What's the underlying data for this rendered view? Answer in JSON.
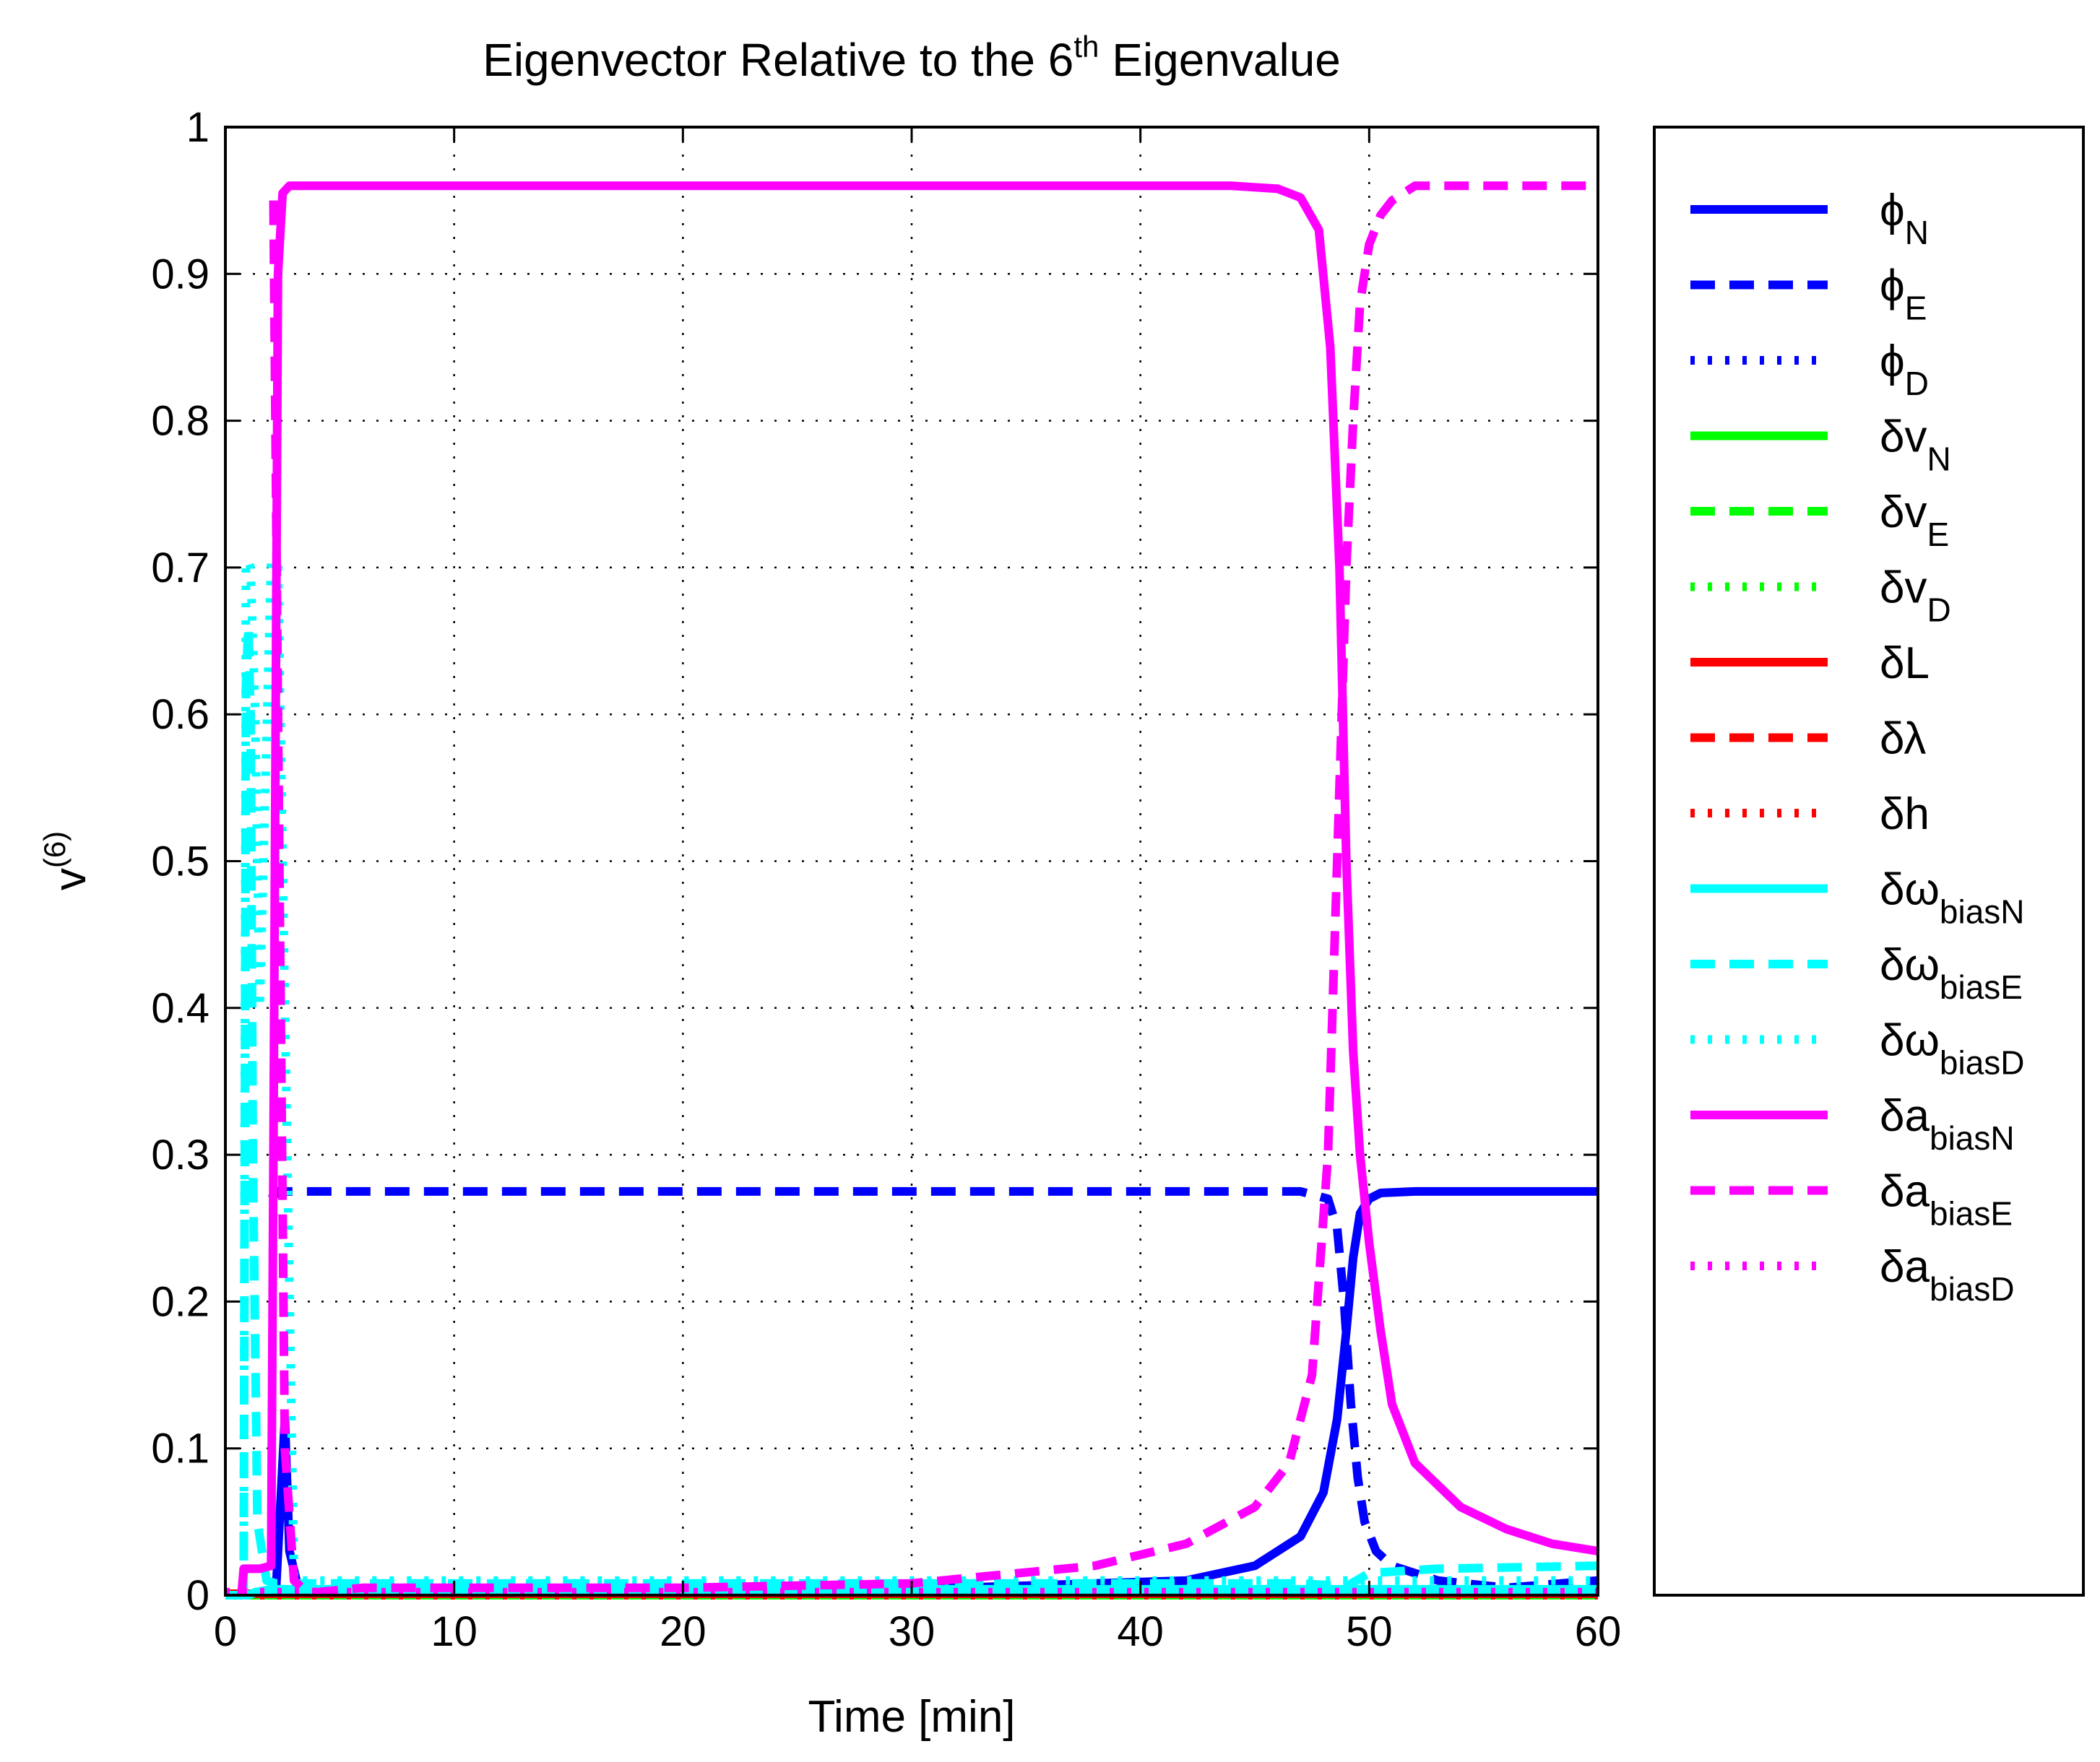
{
  "chart_data": {
    "type": "line",
    "title": {
      "prefix": "Eigenvector Relative to the 6",
      "superscript": "th",
      "suffix": " Eigenvalue"
    },
    "xlabel": "Time [min]",
    "ylabel": {
      "base": "v",
      "superscript": "(6)"
    },
    "xlim": [
      0,
      60
    ],
    "ylim": [
      0,
      1
    ],
    "xticks": [
      0,
      10,
      20,
      30,
      40,
      50,
      60
    ],
    "xtick_labels": [
      "0",
      "10",
      "20",
      "30",
      "40",
      "50",
      "60"
    ],
    "yticks": [
      0,
      0.1,
      0.2,
      0.3,
      0.4,
      0.5,
      0.6,
      0.7,
      0.8,
      0.9,
      1
    ],
    "ytick_labels": [
      "0",
      "0.1",
      "0.2",
      "0.3",
      "0.4",
      "0.5",
      "0.6",
      "0.7",
      "0.8",
      "0.9",
      "1"
    ],
    "grid": true,
    "legend_position": "outside-right",
    "series": [
      {
        "id": "phi_N",
        "label": "ϕ",
        "sub": "N",
        "color": "#0000ff",
        "style": "solid",
        "x": [
          0,
          1,
          2.2,
          2.6,
          2.8,
          3.2,
          4,
          10,
          30,
          42,
          45,
          47,
          48,
          48.6,
          49,
          49.3,
          49.6,
          50,
          50.5,
          52,
          60
        ],
        "y": [
          0,
          0,
          0,
          0.12,
          0.03,
          0.004,
          0.003,
          0.003,
          0.004,
          0.01,
          0.02,
          0.04,
          0.07,
          0.12,
          0.18,
          0.23,
          0.26,
          0.27,
          0.274,
          0.275,
          0.275
        ]
      },
      {
        "id": "phi_E",
        "label": "ϕ",
        "sub": "E",
        "color": "#0000ff",
        "style": "dashed",
        "x": [
          2,
          2.3,
          3,
          10,
          30,
          45,
          47,
          48.2,
          48.6,
          48.9,
          49.2,
          49.5,
          49.8,
          50.3,
          51,
          53,
          56,
          60
        ],
        "y": [
          0.27,
          0.275,
          0.275,
          0.275,
          0.275,
          0.275,
          0.275,
          0.27,
          0.25,
          0.2,
          0.13,
          0.08,
          0.05,
          0.03,
          0.02,
          0.01,
          0.005,
          0.01
        ]
      },
      {
        "id": "phi_D",
        "label": "ϕ",
        "sub": "D",
        "color": "#0000ff",
        "style": "dotted",
        "x": [
          0,
          60
        ],
        "y": [
          0.001,
          0.001
        ]
      },
      {
        "id": "dv_N",
        "label": "δv",
        "sub": "N",
        "color": "#00ff00",
        "style": "solid",
        "x": [
          0,
          60
        ],
        "y": [
          0,
          0
        ]
      },
      {
        "id": "dv_E",
        "label": "δv",
        "sub": "E",
        "color": "#00ff00",
        "style": "dashed",
        "x": [
          0,
          60
        ],
        "y": [
          0,
          0
        ]
      },
      {
        "id": "dv_D",
        "label": "δv",
        "sub": "D",
        "color": "#00ff00",
        "style": "dotted",
        "x": [
          0,
          60
        ],
        "y": [
          0,
          0
        ]
      },
      {
        "id": "dL",
        "label": "δL",
        "sub": "",
        "color": "#ff0000",
        "style": "solid",
        "x": [
          0,
          60
        ],
        "y": [
          0.001,
          0.001
        ]
      },
      {
        "id": "dlambda",
        "label": "δλ",
        "sub": "",
        "color": "#ff0000",
        "style": "dashed",
        "x": [
          0,
          60
        ],
        "y": [
          0.001,
          0.001
        ]
      },
      {
        "id": "dh",
        "label": "δh",
        "sub": "",
        "color": "#ff0000",
        "style": "dotted",
        "x": [
          0,
          60
        ],
        "y": [
          0,
          0
        ]
      },
      {
        "id": "dw_biasN",
        "label": "δω",
        "sub": "biasN",
        "color": "#00ffff",
        "style": "solid",
        "x": [
          0,
          1,
          1.3,
          2,
          3,
          10,
          60
        ],
        "y": [
          0,
          0,
          0.002,
          0.004,
          0.004,
          0.004,
          0.004
        ]
      },
      {
        "id": "dw_biasE",
        "label": "δω",
        "sub": "biasE",
        "color": "#00ffff",
        "style": "dashed",
        "x": [
          0.8,
          0.9,
          1.0,
          1.1,
          1.2,
          1.4,
          1.8,
          2.2,
          3,
          10,
          30,
          47,
          49,
          50,
          53,
          60
        ],
        "y": [
          0,
          0.62,
          0.66,
          0.6,
          0.3,
          0.05,
          0.01,
          0.008,
          0.008,
          0.008,
          0.008,
          0.008,
          0.006,
          0.015,
          0.018,
          0.02
        ]
      },
      {
        "id": "dw_biasD",
        "label": "δω",
        "sub": "biasD",
        "color": "#00ffff",
        "style": "dotted",
        "x": [
          0.8,
          0.9,
          1.0,
          1.1,
          1.3,
          1.5,
          2,
          2.3,
          3,
          10,
          30,
          60
        ],
        "y": [
          0,
          0.7,
          0.705,
          0.7,
          0.6,
          0.4,
          0.705,
          0.7,
          0.01,
          0.01,
          0.01,
          0.01
        ]
      },
      {
        "id": "da_biasN",
        "label": "δa",
        "sub": "biasN",
        "color": "#ff00ff",
        "style": "solid",
        "x": [
          0.7,
          0.8,
          1.5,
          2.0,
          2.1,
          2.3,
          2.5,
          2.8,
          3.2,
          4,
          10,
          30,
          44,
          46,
          47,
          47.8,
          48.3,
          48.7,
          49,
          49.3,
          49.6,
          50,
          50.5,
          51,
          52,
          54,
          56,
          58,
          60
        ],
        "y": [
          0,
          0.018,
          0.018,
          0.02,
          0.3,
          0.9,
          0.955,
          0.96,
          0.96,
          0.96,
          0.96,
          0.96,
          0.96,
          0.958,
          0.952,
          0.93,
          0.85,
          0.7,
          0.5,
          0.37,
          0.3,
          0.24,
          0.18,
          0.13,
          0.09,
          0.06,
          0.045,
          0.035,
          0.03
        ]
      },
      {
        "id": "da_biasE",
        "label": "δa",
        "sub": "biasE",
        "color": "#ff00ff",
        "style": "dashed",
        "x": [
          2.1,
          2.3,
          2.6,
          3,
          3.5,
          4,
          6,
          20,
          30,
          38,
          42,
          45,
          46.5,
          47.5,
          48.2,
          48.6,
          49,
          49.3,
          49.6,
          50,
          50.5,
          51,
          52,
          54,
          60
        ],
        "y": [
          0.95,
          0.6,
          0.1,
          0.01,
          0.003,
          0.002,
          0.005,
          0.005,
          0.008,
          0.02,
          0.035,
          0.06,
          0.09,
          0.15,
          0.3,
          0.5,
          0.7,
          0.8,
          0.88,
          0.92,
          0.94,
          0.95,
          0.96,
          0.96,
          0.96
        ]
      },
      {
        "id": "da_biasD",
        "label": "δa",
        "sub": "biasD",
        "color": "#ff00ff",
        "style": "dotted",
        "x": [
          0,
          60
        ],
        "y": [
          0.002,
          0.002
        ]
      }
    ]
  }
}
